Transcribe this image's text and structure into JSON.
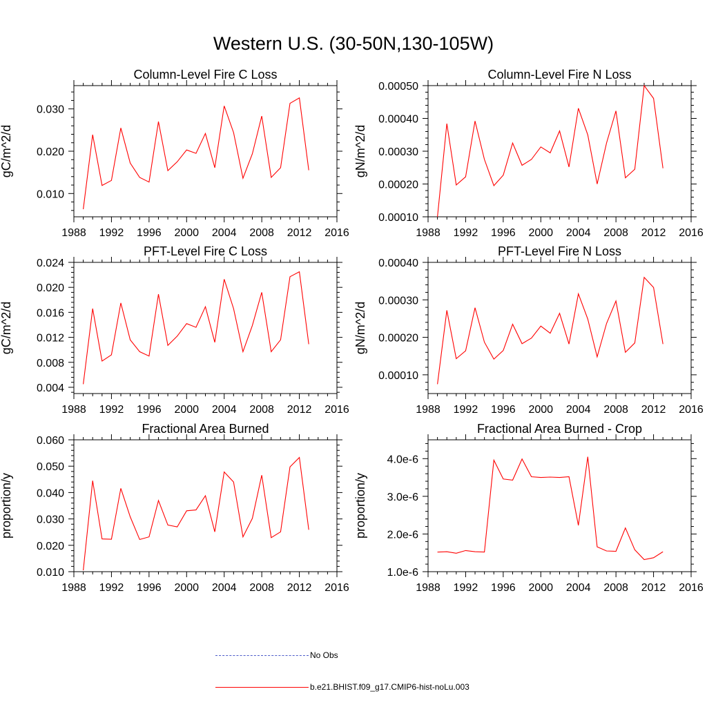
{
  "main_title": "Western U.S. (30-50N,130-105W)",
  "legend": [
    {
      "label": "No Obs",
      "color": "#4b5ac8",
      "style": "dashed"
    },
    {
      "label": "b.e21.BHIST.f09_g17.CMIP6-hist-noLu.003",
      "color": "#ff0000",
      "style": "solid"
    }
  ],
  "chart_data": [
    {
      "type": "line",
      "title": "Column-Level Fire C Loss",
      "ylabel": "gC/m^2/d",
      "xlim": [
        1988,
        2016
      ],
      "ylim": [
        0.0045,
        0.0355
      ],
      "xticks": [
        1988,
        1992,
        1996,
        2000,
        2004,
        2008,
        2012,
        2016
      ],
      "yticks": [
        0.01,
        0.02,
        0.03
      ],
      "ytick_labels": [
        "0.010",
        "0.020",
        "0.030"
      ],
      "x": [
        1989,
        1990,
        1991,
        1992,
        1993,
        1994,
        1995,
        1996,
        1997,
        1998,
        1999,
        2000,
        2001,
        2002,
        2003,
        2004,
        2005,
        2006,
        2007,
        2008,
        2009,
        2010,
        2011,
        2012,
        2013
      ],
      "series": [
        {
          "values": [
            0.0063,
            0.0239,
            0.0119,
            0.0131,
            0.0255,
            0.0172,
            0.0138,
            0.0127,
            0.027,
            0.0154,
            0.0175,
            0.0203,
            0.0195,
            0.0242,
            0.0161,
            0.0307,
            0.0244,
            0.0136,
            0.0194,
            0.0283,
            0.0138,
            0.0161,
            0.0313,
            0.0326,
            0.0155
          ],
          "color": "#ff0000"
        }
      ]
    },
    {
      "type": "line",
      "title": "Column-Level Fire N Loss",
      "ylabel": "gN/m^2/d",
      "xlim": [
        1988,
        2016
      ],
      "ylim": [
        0.0001,
        0.0005
      ],
      "xticks": [
        1988,
        1992,
        1996,
        2000,
        2004,
        2008,
        2012,
        2016
      ],
      "yticks": [
        0.0001,
        0.0002,
        0.0003,
        0.0004,
        0.0005
      ],
      "ytick_labels": [
        "0.00010",
        "0.00020",
        "0.00030",
        "0.00040",
        "0.00050"
      ],
      "x": [
        1989,
        1990,
        1991,
        1992,
        1993,
        1994,
        1995,
        1996,
        1997,
        1998,
        1999,
        2000,
        2001,
        2002,
        2003,
        2004,
        2005,
        2006,
        2007,
        2008,
        2009,
        2010,
        2011,
        2012,
        2013
      ],
      "series": [
        {
          "values": [
            0.0001,
            0.000384,
            0.000197,
            0.000222,
            0.000392,
            0.000275,
            0.000195,
            0.000227,
            0.000325,
            0.000257,
            0.000275,
            0.000313,
            0.000295,
            0.000362,
            0.000252,
            0.000431,
            0.00035,
            0.0002,
            0.000325,
            0.000423,
            0.000219,
            0.000245,
            0.0005,
            0.000461,
            0.000248
          ],
          "color": "#ff0000"
        }
      ]
    },
    {
      "type": "line",
      "title": "PFT-Level Fire C Loss",
      "ylabel": "gC/m^2/d",
      "xlim": [
        1988,
        2016
      ],
      "ylim": [
        0.003,
        0.024
      ],
      "xticks": [
        1988,
        1992,
        1996,
        2000,
        2004,
        2008,
        2012,
        2016
      ],
      "yticks": [
        0.004,
        0.008,
        0.012,
        0.016,
        0.02,
        0.024
      ],
      "ytick_labels": [
        "0.004",
        "0.008",
        "0.012",
        "0.016",
        "0.020",
        "0.024"
      ],
      "x": [
        1989,
        1990,
        1991,
        1992,
        1993,
        1994,
        1995,
        1996,
        1997,
        1998,
        1999,
        2000,
        2001,
        2002,
        2003,
        2004,
        2005,
        2006,
        2007,
        2008,
        2009,
        2010,
        2011,
        2012,
        2013
      ],
      "series": [
        {
          "values": [
            0.0045,
            0.0166,
            0.0082,
            0.0092,
            0.0175,
            0.0116,
            0.0097,
            0.009,
            0.0189,
            0.0107,
            0.0122,
            0.0142,
            0.0136,
            0.0169,
            0.0112,
            0.0213,
            0.0166,
            0.0097,
            0.0139,
            0.0192,
            0.0097,
            0.0116,
            0.0217,
            0.0225,
            0.0109
          ],
          "color": "#ff0000"
        }
      ]
    },
    {
      "type": "line",
      "title": "PFT-Level Fire N Loss",
      "ylabel": "gN/m^2/d",
      "xlim": [
        1988,
        2016
      ],
      "ylim": [
        5e-05,
        0.0004
      ],
      "xticks": [
        1988,
        1992,
        1996,
        2000,
        2004,
        2008,
        2012,
        2016
      ],
      "yticks": [
        0.0001,
        0.0002,
        0.0003,
        0.0004
      ],
      "ytick_labels": [
        "0.00010",
        "0.00020",
        "0.00030",
        "0.00040"
      ],
      "x": [
        1989,
        1990,
        1991,
        1992,
        1993,
        1994,
        1995,
        1996,
        1997,
        1998,
        1999,
        2000,
        2001,
        2002,
        2003,
        2004,
        2005,
        2006,
        2007,
        2008,
        2009,
        2010,
        2011,
        2012,
        2013
      ],
      "series": [
        {
          "values": [
            7.5e-05,
            0.000272,
            0.000143,
            0.000164,
            0.000279,
            0.000187,
            0.000142,
            0.000165,
            0.000235,
            0.000183,
            0.000198,
            0.00023,
            0.000211,
            0.000264,
            0.000182,
            0.000316,
            0.000249,
            0.000148,
            0.000237,
            0.000297,
            0.00016,
            0.000185,
            0.00036,
            0.000333,
            0.000182
          ],
          "color": "#ff0000"
        }
      ]
    },
    {
      "type": "line",
      "title": "Fractional Area Burned",
      "ylabel": "proportion/y",
      "xlim": [
        1988,
        2016
      ],
      "ylim": [
        0.01,
        0.06
      ],
      "xticks": [
        1988,
        1992,
        1996,
        2000,
        2004,
        2008,
        2012,
        2016
      ],
      "yticks": [
        0.01,
        0.02,
        0.03,
        0.04,
        0.05,
        0.06
      ],
      "ytick_labels": [
        "0.010",
        "0.020",
        "0.030",
        "0.040",
        "0.050",
        "0.060"
      ],
      "x": [
        1989,
        1990,
        1991,
        1992,
        1993,
        1994,
        1995,
        1996,
        1997,
        1998,
        1999,
        2000,
        2001,
        2002,
        2003,
        2004,
        2005,
        2006,
        2007,
        2008,
        2009,
        2010,
        2011,
        2012,
        2013
      ],
      "series": [
        {
          "values": [
            0.0105,
            0.0445,
            0.0224,
            0.0223,
            0.0416,
            0.0308,
            0.0222,
            0.0232,
            0.037,
            0.0277,
            0.027,
            0.0331,
            0.0334,
            0.0388,
            0.0251,
            0.0478,
            0.044,
            0.0232,
            0.0302,
            0.0466,
            0.0229,
            0.0251,
            0.0497,
            0.0533,
            0.0259
          ],
          "color": "#ff0000"
        }
      ]
    },
    {
      "type": "line",
      "title": "Fractional Area Burned - Crop",
      "ylabel": "proportion/y",
      "xlim": [
        1988,
        2016
      ],
      "ylim": [
        1e-06,
        4.5e-06
      ],
      "xticks": [
        1988,
        1992,
        1996,
        2000,
        2004,
        2008,
        2012,
        2016
      ],
      "yticks": [
        1e-06,
        2e-06,
        3e-06,
        4e-06
      ],
      "ytick_labels": [
        "1.0e-6",
        "2.0e-6",
        "3.0e-6",
        "4.0e-6"
      ],
      "x": [
        1989,
        1990,
        1991,
        1992,
        1993,
        1994,
        1995,
        1996,
        1997,
        1998,
        1999,
        2000,
        2001,
        2002,
        2003,
        2004,
        2005,
        2006,
        2007,
        2008,
        2009,
        2010,
        2011,
        2012,
        2013
      ],
      "series": [
        {
          "values": [
            1.52e-06,
            1.53e-06,
            1.49e-06,
            1.56e-06,
            1.53e-06,
            1.52e-06,
            3.96e-06,
            3.46e-06,
            3.43e-06,
            3.99e-06,
            3.52e-06,
            3.5e-06,
            3.51e-06,
            3.5e-06,
            3.52e-06,
            2.23e-06,
            4.05e-06,
            1.66e-06,
            1.55e-06,
            1.54e-06,
            2.16e-06,
            1.58e-06,
            1.32e-06,
            1.37e-06,
            1.53e-06
          ],
          "color": "#ff0000"
        }
      ]
    }
  ]
}
